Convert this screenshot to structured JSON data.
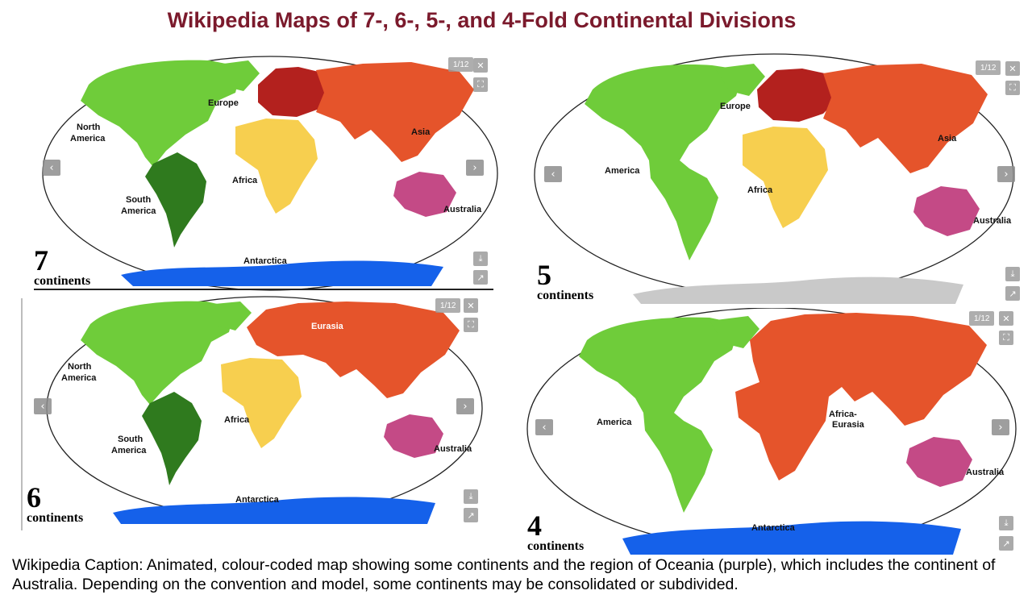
{
  "title": "Wikipedia Maps of 7-, 6-, 5-, and 4-Fold Continental Divisions",
  "colors": {
    "north_america": "#6fcc3a",
    "south_america": "#2f7a1e",
    "america": "#6fcc3a",
    "europe": "#b3211e",
    "asia": "#e5542b",
    "eurasia": "#e5542b",
    "africa": "#f7cf4f",
    "africa_eurasia": "#e5542b",
    "australia": "#c44a86",
    "antarctica": "#1561ea",
    "antarctica_grey": "#c9c9c9",
    "title": "#7b1a2c"
  },
  "panels": {
    "p7": {
      "counter": "1/12",
      "number": "7",
      "word": "continents",
      "labels": {
        "north_america": "North\nAmerica",
        "south_america": "South\nAmerica",
        "europe": "Europe",
        "asia": "Asia",
        "africa": "Africa",
        "australia": "Australia",
        "antarctica": "Antarctica"
      }
    },
    "p6": {
      "counter": "1/12",
      "number": "6",
      "word": "continents",
      "labels": {
        "north_america": "North\nAmerica",
        "south_america": "South\nAmerica",
        "eurasia": "Eurasia",
        "africa": "Africa",
        "australia": "Australia",
        "antarctica": "Antarctica"
      }
    },
    "p5": {
      "counter": "1/12",
      "number": "5",
      "word": "continents",
      "labels": {
        "america": "America",
        "europe": "Europe",
        "asia": "Asia",
        "africa": "Africa",
        "australia": "Australia"
      }
    },
    "p4": {
      "counter": "1/12",
      "number": "4",
      "word": "continents",
      "labels": {
        "america": "America",
        "africa_eurasia": "Africa-\nEurasia",
        "australia": "Australia",
        "antarctica": "Antarctica"
      }
    }
  },
  "controls": {
    "close_icon": "close-icon",
    "fullscreen_icon": "fullscreen-icon",
    "prev_icon": "chevron-left-icon",
    "next_icon": "chevron-right-icon",
    "download_icon": "download-icon",
    "share_icon": "share-icon"
  },
  "caption": "Wikipedia Caption: Animated, colour-coded map showing some continents and the region of Oceania (purple), which includes the continent of Australia. Depending on the convention and model, some continents may be consolidated or subdivided."
}
